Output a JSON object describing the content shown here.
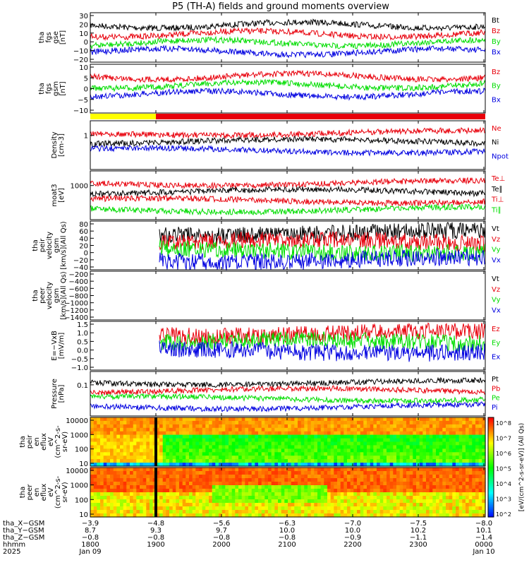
{
  "title": "P5 (TH-A) fields and ground moments overview",
  "colors": {
    "black": "#000000",
    "red": "#e8000b",
    "green": "#00dd00",
    "blue": "#0000e0",
    "yellow": "#ffff00"
  },
  "chart_data": [
    {
      "type": "line",
      "ylabel": [
        "tha",
        "fgs",
        "gse",
        "[nT]"
      ],
      "ylim": [
        -20,
        35
      ],
      "yticks": [
        "30",
        "20",
        "10",
        "0",
        "−10",
        "−20"
      ],
      "legend": [
        {
          "name": "Bt",
          "color": "black"
        },
        {
          "name": "Bz",
          "color": "red"
        },
        {
          "name": "By",
          "color": "green"
        },
        {
          "name": "Bx",
          "color": "blue"
        }
      ]
    },
    {
      "type": "line",
      "ylabel": [
        "tha",
        "fgs",
        "gsm",
        "[nT]"
      ],
      "ylim": [
        -15,
        10
      ],
      "yticks": [
        "10",
        "5",
        "0",
        "−5",
        "−10"
      ],
      "legend": [
        {
          "name": "Bz",
          "color": "red"
        },
        {
          "name": "By",
          "color": "green"
        },
        {
          "name": "Bx",
          "color": "blue"
        }
      ]
    },
    {
      "type": "bar",
      "note": "status bar",
      "segments": [
        {
          "from": "1800",
          "to": "1900",
          "color": "yellow"
        },
        {
          "from": "1900",
          "to": "0000",
          "color": "red"
        }
      ]
    },
    {
      "type": "line",
      "ylabel": [
        "Density",
        "[cm-3]"
      ],
      "scale": "log",
      "yticks": [
        "1"
      ],
      "legend": [
        {
          "name": "Ne",
          "color": "red"
        },
        {
          "name": "Ni",
          "color": "black"
        },
        {
          "name": "Npot",
          "color": "blue"
        }
      ]
    },
    {
      "type": "line",
      "ylabel": [
        "moat3",
        "[eV]"
      ],
      "scale": "log",
      "yticks": [
        "1000"
      ],
      "legend": [
        {
          "name": "Te⊥",
          "color": "red"
        },
        {
          "name": "Te∥",
          "color": "black"
        },
        {
          "name": "Ti⊥",
          "color": "red"
        },
        {
          "name": "Ti∥",
          "color": "green"
        }
      ]
    },
    {
      "type": "line",
      "ylabel": [
        "tha",
        "peir",
        "velocity",
        "gsm",
        "[km/s](All Qs)"
      ],
      "ylim": [
        -50,
        80
      ],
      "yticks": [
        "80",
        "60",
        "40",
        "20",
        "0",
        "−20",
        "−40"
      ],
      "legend": [
        {
          "name": "Vt",
          "color": "black"
        },
        {
          "name": "Vz",
          "color": "red"
        },
        {
          "name": "Vy",
          "color": "green"
        },
        {
          "name": "Vx",
          "color": "blue"
        }
      ]
    },
    {
      "type": "line",
      "ylabel": [
        "tha",
        "peer",
        "velocity",
        "gsm",
        "[km/s](All Qs)"
      ],
      "ylim": [
        -1450,
        0
      ],
      "yticks": [
        "−200",
        "−400",
        "−600",
        "−800",
        "−1000",
        "−1200",
        "−1400"
      ],
      "legend": [
        {
          "name": "Vt",
          "color": "black"
        },
        {
          "name": "Vz",
          "color": "red"
        },
        {
          "name": "Vy",
          "color": "green"
        },
        {
          "name": "Vx",
          "color": "blue"
        }
      ]
    },
    {
      "type": "line",
      "ylabel": [
        "E=−VxB",
        "[mV/m]"
      ],
      "ylim": [
        -1.1,
        1.5
      ],
      "yticks": [
        "1.5",
        "1.0",
        "0.5",
        "0.0",
        "−0.5",
        "−1.0"
      ],
      "legend": [
        {
          "name": "Ez",
          "color": "red"
        },
        {
          "name": "Ey",
          "color": "green"
        },
        {
          "name": "Ex",
          "color": "blue"
        }
      ]
    },
    {
      "type": "line",
      "ylabel": [
        "Pressure",
        "[nPa]"
      ],
      "scale": "log",
      "yticks": [
        "0.1"
      ],
      "legend": [
        {
          "name": "Pt",
          "color": "black"
        },
        {
          "name": "Pb",
          "color": "red"
        },
        {
          "name": "Pe",
          "color": "green"
        },
        {
          "name": "Pi",
          "color": "blue"
        }
      ]
    },
    {
      "type": "heatmap",
      "ylabel": [
        "tha",
        "peir",
        "en",
        "eflux",
        "eV",
        "(cm^2-s-",
        "sr-eV)"
      ],
      "scale": "log",
      "yticks": [
        "10000",
        "1000",
        "100",
        "10"
      ]
    },
    {
      "type": "heatmap",
      "ylabel": [
        "tha",
        "peer",
        "en",
        "eflux",
        "eV",
        "(cm^2-s-",
        "sr-eV)"
      ],
      "scale": "log",
      "yticks": [
        "10000",
        "1000",
        "100",
        "10"
      ]
    }
  ],
  "colorbar": {
    "label": "[eV/(cm^2-s-sr-eV)] (All Qs)",
    "ticks": [
      "10^8",
      "10^7",
      "10^6",
      "10^5",
      "10^4",
      "10^3",
      "10^2"
    ]
  },
  "time_axis": {
    "row_labels": [
      "tha_X−GSM",
      "tha_Y−GSM",
      "tha_Z−GSM",
      "hhmm",
      "2025"
    ],
    "ticks": [
      {
        "x": "−3.9",
        "y": "8.7",
        "z": "−0.8",
        "hhmm": "1800",
        "date": "Jan 09"
      },
      {
        "x": "−4.8",
        "y": "9.3",
        "z": "−0.8",
        "hhmm": "1900",
        "date": ""
      },
      {
        "x": "−5.6",
        "y": "9.7",
        "z": "−0.8",
        "hhmm": "2000",
        "date": ""
      },
      {
        "x": "−6.3",
        "y": "10.0",
        "z": "−0.8",
        "hhmm": "2100",
        "date": ""
      },
      {
        "x": "−7.0",
        "y": "10.0",
        "z": "−0.9",
        "hhmm": "2200",
        "date": ""
      },
      {
        "x": "−7.5",
        "y": "10.2",
        "z": "−1.1",
        "hhmm": "2300",
        "date": ""
      },
      {
        "x": "−8.0",
        "y": "10.1",
        "z": "−1.4",
        "hhmm": "0000",
        "date": "Jan 10"
      }
    ]
  }
}
